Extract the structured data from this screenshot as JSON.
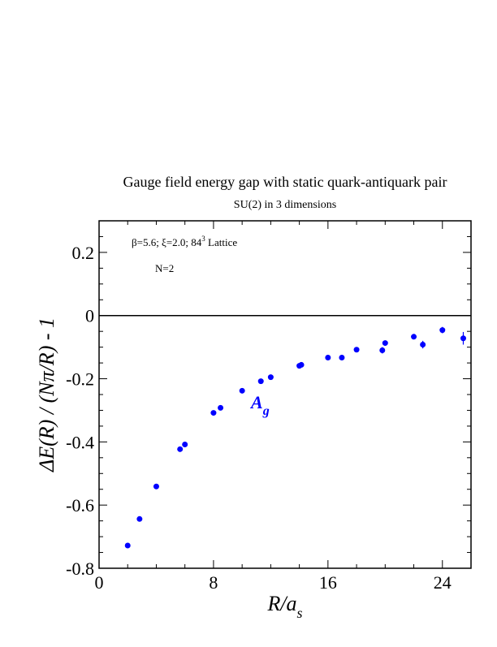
{
  "chart_data": {
    "type": "scatter",
    "title": "Gauge field energy gap with static quark-antiquark pair",
    "subtitle": "SU(2) in 3 dimensions",
    "x_label": {
      "main": "R/a",
      "subscript": "s"
    },
    "y_label": "ΔE(R) / (Nπ/R) - 1",
    "annotations": {
      "lattice": {
        "text": "β=5.6;  ξ=2.0; 84",
        "superscript": "3",
        "suffix": " Lattice"
      },
      "n": "N=2",
      "series_label": {
        "main": "A",
        "subscript": "g"
      }
    },
    "series": [
      {
        "color": "#0000ff",
        "x": [
          2.0,
          2.83,
          4.0,
          5.66,
          6.0,
          8.0,
          8.49,
          10.0,
          11.31,
          12.0,
          14.0,
          14.14,
          16.0,
          16.97,
          18.0,
          19.8,
          20.0,
          22.0,
          22.63,
          24.0,
          25.46
        ],
        "values": [
          -0.728,
          -0.644,
          -0.541,
          -0.423,
          -0.408,
          -0.308,
          -0.292,
          -0.238,
          -0.208,
          -0.195,
          -0.159,
          -0.156,
          -0.133,
          -0.133,
          -0.108,
          -0.11,
          -0.087,
          -0.067,
          -0.092,
          -0.046,
          -0.072
        ],
        "errors": [
          0.004,
          0.004,
          0.004,
          0.004,
          0.004,
          0.004,
          0.004,
          0.004,
          0.004,
          0.004,
          0.005,
          0.005,
          0.005,
          0.008,
          0.006,
          0.01,
          0.008,
          0.008,
          0.012,
          0.01,
          0.02
        ]
      }
    ],
    "xlim": [
      0,
      26
    ],
    "ylim": [
      -0.8,
      0.3
    ],
    "xticks": [
      0,
      8,
      16,
      24
    ],
    "yticks": [
      -0.8,
      -0.6,
      -0.4,
      -0.2,
      0,
      0.2
    ],
    "xminorticks": [
      2,
      4,
      6,
      10,
      12,
      14,
      18,
      20,
      22
    ],
    "yminorticks": [
      -0.75,
      -0.7,
      -0.65,
      -0.55,
      -0.5,
      -0.45,
      -0.35,
      -0.3,
      -0.25,
      -0.15,
      -0.1,
      -0.05,
      0.05,
      0.1,
      0.15,
      0.25
    ],
    "zero_line": 0
  }
}
